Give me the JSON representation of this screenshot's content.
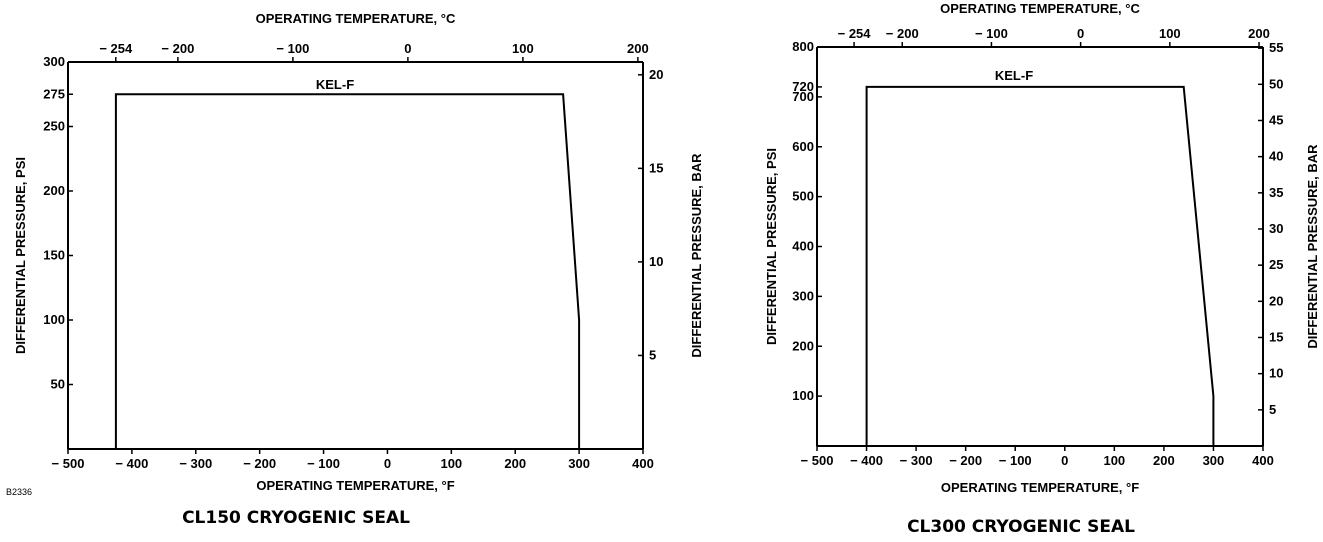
{
  "figure_id": "B2336",
  "chart_data": [
    {
      "type": "line",
      "caption": "CL150 CRYOGENIC SEAL",
      "series": [
        {
          "name": "KEL-F",
          "x": [
            -425,
            -425,
            275,
            300,
            300
          ],
          "y": [
            0,
            275,
            275,
            100,
            0
          ]
        }
      ],
      "x_bottom": {
        "label": "OPERATING TEMPERATURE, °F",
        "range": [
          -500,
          400
        ],
        "ticks": [
          -500,
          -400,
          -300,
          -200,
          -100,
          0,
          100,
          200,
          300,
          400
        ],
        "tick_labels": [
          "− 500",
          "− 400",
          "− 300",
          "− 200",
          "− 100",
          "0",
          "100",
          "200",
          "300",
          "400"
        ]
      },
      "x_top": {
        "label": "OPERATING TEMPERATURE, °C",
        "ticks": [
          -254,
          -200,
          -100,
          0,
          100,
          200
        ],
        "tick_labels": [
          "− 254",
          "− 200",
          "− 100",
          "0",
          "100",
          "200"
        ]
      },
      "y_left": {
        "label": "DIFFERENTIAL PRESSURE, PSI",
        "range": [
          0,
          300
        ],
        "ticks": [
          50,
          100,
          150,
          200,
          250,
          275,
          300
        ],
        "tick_labels": [
          "50",
          "100",
          "150",
          "200",
          "250",
          "275",
          "300"
        ]
      },
      "y_right": {
        "label": "DIFFERENTIAL PRESSURE, BAR",
        "ticks": [
          5,
          10,
          15,
          20
        ],
        "tick_labels": [
          "5",
          "10",
          "15",
          "20"
        ]
      },
      "grid": false
    },
    {
      "type": "line",
      "caption": "CL300 CRYOGENIC SEAL",
      "series": [
        {
          "name": "KEL-F",
          "x": [
            -400,
            -400,
            240,
            300,
            300
          ],
          "y": [
            0,
            720,
            720,
            100,
            0
          ]
        }
      ],
      "x_bottom": {
        "label": "OPERATING TEMPERATURE, °F",
        "range": [
          -500,
          400
        ],
        "ticks": [
          -500,
          -400,
          -300,
          -200,
          -100,
          0,
          100,
          200,
          300,
          400
        ],
        "tick_labels": [
          "− 500",
          "− 400",
          "− 300",
          "− 200",
          "− 100",
          "0",
          "100",
          "200",
          "300",
          "400"
        ]
      },
      "x_top": {
        "label": "OPERATING TEMPERATURE, °C",
        "ticks": [
          -254,
          -200,
          -100,
          0,
          100,
          200
        ],
        "tick_labels": [
          "− 254",
          "− 200",
          "− 100",
          "0",
          "100",
          "200"
        ]
      },
      "y_left": {
        "label": "DIFFERENTIAL PRESSURE, PSI",
        "range": [
          0,
          800
        ],
        "ticks": [
          100,
          200,
          300,
          400,
          500,
          600,
          700,
          720,
          800
        ],
        "tick_labels": [
          "100",
          "200",
          "300",
          "400",
          "500",
          "600",
          "700",
          "720",
          "800"
        ]
      },
      "y_right": {
        "label": "DIFFERENTIAL PRESSURE, BAR",
        "ticks": [
          5,
          10,
          15,
          20,
          25,
          30,
          35,
          40,
          45,
          50,
          55
        ],
        "tick_labels": [
          "5",
          "10",
          "15",
          "20",
          "25",
          "30",
          "35",
          "40",
          "45",
          "50",
          "55"
        ]
      },
      "grid": false
    }
  ]
}
